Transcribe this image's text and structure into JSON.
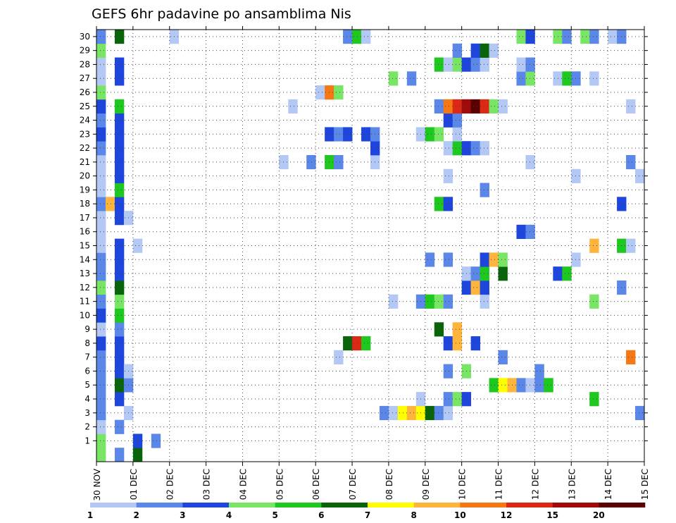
{
  "chart_data": {
    "type": "heatmap",
    "title": "GEFS 6hr padavine po ansamblima Nis",
    "xlabel": "",
    "ylabel": "",
    "x_ticks": [
      "30 NOV",
      "01 DEC",
      "02 DEC",
      "03 DEC",
      "04 DEC",
      "05 DEC",
      "06 DEC",
      "07 DEC",
      "08 DEC",
      "09 DEC",
      "10 DEC",
      "11 DEC",
      "12 DEC",
      "13 DEC",
      "14 DEC",
      "15 DEC"
    ],
    "y_ticks": [
      1,
      2,
      3,
      4,
      5,
      6,
      7,
      8,
      9,
      10,
      11,
      12,
      13,
      14,
      15,
      16,
      17,
      18,
      19,
      20,
      21,
      22,
      23,
      24,
      25,
      26,
      27,
      28,
      29,
      30
    ],
    "y_range": [
      0,
      30
    ],
    "time_steps_per_day": 4,
    "grid": "dotted",
    "colorbar": {
      "levels": [
        1,
        2,
        3,
        4,
        5,
        6,
        7,
        8,
        10,
        12,
        15,
        20
      ],
      "colors": [
        "#b4c8f5",
        "#5a87e8",
        "#1e46dc",
        "#78e664",
        "#1ec81e",
        "#0a640a",
        "#ffff00",
        "#ffb43c",
        "#f57814",
        "#dc2814",
        "#a00a0a",
        "#5a0000"
      ]
    },
    "cells": [
      {
        "m": 0,
        "t": [
          [
            0,
            4
          ],
          [
            0.5,
            2
          ],
          [
            1,
            6
          ]
        ]
      },
      {
        "m": 1,
        "t": [
          [
            0,
            4
          ],
          [
            1,
            3
          ],
          [
            1.5,
            2
          ]
        ]
      },
      {
        "m": 2,
        "t": [
          [
            0,
            1
          ],
          [
            0.5,
            2
          ]
        ]
      },
      {
        "m": 3,
        "t": [
          [
            0,
            2
          ],
          [
            0.75,
            1
          ],
          [
            7.75,
            2
          ],
          [
            8,
            1
          ],
          [
            8.25,
            7
          ],
          [
            8.5,
            8
          ],
          [
            8.75,
            7
          ],
          [
            9,
            6
          ],
          [
            9.25,
            2
          ],
          [
            9.5,
            1
          ],
          [
            14.75,
            2
          ],
          [
            15,
            8
          ],
          [
            15.25,
            1
          ]
        ]
      },
      {
        "m": 4,
        "t": [
          [
            0,
            2
          ],
          [
            0.5,
            3
          ],
          [
            8.75,
            1
          ],
          [
            9.5,
            2
          ],
          [
            9.75,
            4
          ],
          [
            10,
            3
          ],
          [
            13.5,
            5
          ]
        ]
      },
      {
        "m": 5,
        "t": [
          [
            0,
            2
          ],
          [
            0.5,
            6
          ],
          [
            0.75,
            2
          ],
          [
            10.75,
            5
          ],
          [
            11,
            7
          ],
          [
            11.25,
            8
          ],
          [
            11.5,
            2
          ],
          [
            11.75,
            1
          ],
          [
            12,
            2
          ],
          [
            12.25,
            5
          ],
          [
            15.75,
            2
          ]
        ]
      },
      {
        "m": 6,
        "t": [
          [
            0,
            2
          ],
          [
            0.5,
            3
          ],
          [
            0.75,
            1
          ],
          [
            9.5,
            2
          ],
          [
            10,
            4
          ],
          [
            12,
            2
          ]
        ]
      },
      {
        "m": 7,
        "t": [
          [
            0,
            2
          ],
          [
            0.5,
            3
          ],
          [
            6.5,
            1
          ],
          [
            11,
            2
          ],
          [
            14.5,
            9
          ],
          [
            15.75,
            1
          ]
        ]
      },
      {
        "m": 8,
        "t": [
          [
            0,
            3
          ],
          [
            0.5,
            3
          ],
          [
            6.75,
            6
          ],
          [
            7,
            10
          ],
          [
            7.25,
            5
          ],
          [
            9.5,
            3
          ],
          [
            9.75,
            8
          ],
          [
            10.25,
            3
          ]
        ]
      },
      {
        "m": 9,
        "t": [
          [
            0,
            1
          ],
          [
            0.5,
            2
          ],
          [
            9.25,
            6
          ],
          [
            9.75,
            8
          ]
        ]
      },
      {
        "m": 10,
        "t": [
          [
            0,
            3
          ],
          [
            0.5,
            5
          ]
        ]
      },
      {
        "m": 11,
        "t": [
          [
            0,
            2
          ],
          [
            0.5,
            4
          ],
          [
            8,
            1
          ],
          [
            8.75,
            2
          ],
          [
            9,
            5
          ],
          [
            9.25,
            4
          ],
          [
            9.5,
            2
          ],
          [
            10.5,
            1
          ],
          [
            13.5,
            4
          ]
        ]
      },
      {
        "m": 12,
        "t": [
          [
            0,
            4
          ],
          [
            0.5,
            6
          ],
          [
            10,
            3
          ],
          [
            10.25,
            8
          ],
          [
            10.5,
            3
          ],
          [
            14.25,
            2
          ]
        ]
      },
      {
        "m": 13,
        "t": [
          [
            0,
            2
          ],
          [
            0.5,
            3
          ],
          [
            10,
            1
          ],
          [
            10.25,
            2
          ],
          [
            10.5,
            5
          ],
          [
            11,
            6
          ],
          [
            12.5,
            3
          ],
          [
            12.75,
            5
          ]
        ]
      },
      {
        "m": 14,
        "t": [
          [
            0,
            2
          ],
          [
            0.5,
            3
          ],
          [
            9,
            2
          ],
          [
            9.5,
            2
          ],
          [
            10.5,
            3
          ],
          [
            10.75,
            8
          ],
          [
            11,
            4
          ],
          [
            13,
            1
          ]
        ]
      },
      {
        "m": 15,
        "t": [
          [
            0,
            1
          ],
          [
            0.5,
            3
          ],
          [
            1,
            1
          ],
          [
            13.5,
            8
          ],
          [
            14.25,
            5
          ],
          [
            14.5,
            1
          ]
        ]
      },
      {
        "m": 16,
        "t": [
          [
            0,
            1
          ],
          [
            11.5,
            3
          ],
          [
            11.75,
            2
          ]
        ]
      },
      {
        "m": 17,
        "t": [
          [
            0,
            1
          ],
          [
            0.5,
            3
          ],
          [
            0.75,
            1
          ]
        ]
      },
      {
        "m": 18,
        "t": [
          [
            0,
            2
          ],
          [
            0.25,
            8
          ],
          [
            0.5,
            3
          ],
          [
            9.25,
            5
          ],
          [
            9.5,
            3
          ],
          [
            14.25,
            3
          ]
        ]
      },
      {
        "m": 19,
        "t": [
          [
            0,
            1
          ],
          [
            0.5,
            5
          ],
          [
            10.5,
            2
          ]
        ]
      },
      {
        "m": 20,
        "t": [
          [
            0,
            1
          ],
          [
            0.5,
            3
          ],
          [
            9.5,
            1
          ],
          [
            13,
            1
          ],
          [
            14.75,
            1
          ]
        ]
      },
      {
        "m": 21,
        "t": [
          [
            0,
            1
          ],
          [
            0.5,
            3
          ],
          [
            5,
            1
          ],
          [
            5.75,
            2
          ],
          [
            6.25,
            5
          ],
          [
            6.5,
            2
          ],
          [
            7.5,
            1
          ],
          [
            11.75,
            1
          ],
          [
            14.5,
            2
          ],
          [
            15.75,
            2
          ]
        ]
      },
      {
        "m": 22,
        "t": [
          [
            0,
            2
          ],
          [
            0.5,
            3
          ],
          [
            7.5,
            3
          ],
          [
            9.5,
            1
          ],
          [
            9.75,
            5
          ],
          [
            10,
            3
          ],
          [
            10.25,
            2
          ],
          [
            10.5,
            1
          ],
          [
            15.25,
            2
          ],
          [
            15.75,
            6
          ]
        ]
      },
      {
        "m": 23,
        "t": [
          [
            0,
            3
          ],
          [
            0.5,
            3
          ],
          [
            6.25,
            3
          ],
          [
            6.5,
            2
          ],
          [
            6.75,
            3
          ],
          [
            7.25,
            3
          ],
          [
            7.5,
            2
          ],
          [
            8.75,
            1
          ],
          [
            9,
            5
          ],
          [
            9.25,
            4
          ],
          [
            9.75,
            1
          ],
          [
            15.75,
            1
          ]
        ]
      },
      {
        "m": 24,
        "t": [
          [
            0,
            2
          ],
          [
            0.5,
            3
          ],
          [
            9.5,
            3
          ],
          [
            9.75,
            2
          ]
        ]
      },
      {
        "m": 25,
        "t": [
          [
            0,
            3
          ],
          [
            0.5,
            5
          ],
          [
            5.25,
            1
          ],
          [
            9.25,
            2
          ],
          [
            9.5,
            9
          ],
          [
            9.75,
            10
          ],
          [
            10,
            11
          ],
          [
            10.25,
            12
          ],
          [
            10.5,
            10
          ],
          [
            10.75,
            4
          ],
          [
            11,
            1
          ],
          [
            14.5,
            1
          ]
        ]
      },
      {
        "m": 26,
        "t": [
          [
            0,
            4
          ],
          [
            6,
            1
          ],
          [
            6.25,
            9
          ],
          [
            6.5,
            4
          ]
        ]
      },
      {
        "m": 27,
        "t": [
          [
            0,
            1
          ],
          [
            0.5,
            3
          ],
          [
            8,
            4
          ],
          [
            8.5,
            2
          ],
          [
            11.5,
            2
          ],
          [
            11.75,
            4
          ],
          [
            12.5,
            1
          ],
          [
            12.75,
            5
          ],
          [
            13,
            2
          ],
          [
            13.5,
            1
          ]
        ]
      },
      {
        "m": 28,
        "t": [
          [
            0,
            1
          ],
          [
            0.5,
            3
          ],
          [
            9.25,
            5
          ],
          [
            9.5,
            1
          ],
          [
            9.75,
            4
          ],
          [
            10,
            3
          ],
          [
            10.25,
            2
          ],
          [
            10.5,
            1
          ],
          [
            11.5,
            1
          ],
          [
            11.75,
            2
          ]
        ]
      },
      {
        "m": 29,
        "t": [
          [
            0,
            4
          ],
          [
            9.75,
            2
          ],
          [
            10.25,
            3
          ],
          [
            10.5,
            6
          ],
          [
            10.75,
            1
          ],
          [
            15.75,
            2
          ]
        ]
      },
      {
        "m": 30,
        "t": [
          [
            0,
            2
          ],
          [
            0.5,
            6
          ],
          [
            2,
            1
          ],
          [
            6.75,
            2
          ],
          [
            7,
            5
          ],
          [
            7.25,
            1
          ],
          [
            11.5,
            4
          ],
          [
            11.75,
            3
          ],
          [
            12.5,
            4
          ],
          [
            12.75,
            2
          ],
          [
            13.25,
            4
          ],
          [
            13.5,
            2
          ],
          [
            14,
            1
          ],
          [
            14.25,
            2
          ]
        ]
      }
    ]
  }
}
